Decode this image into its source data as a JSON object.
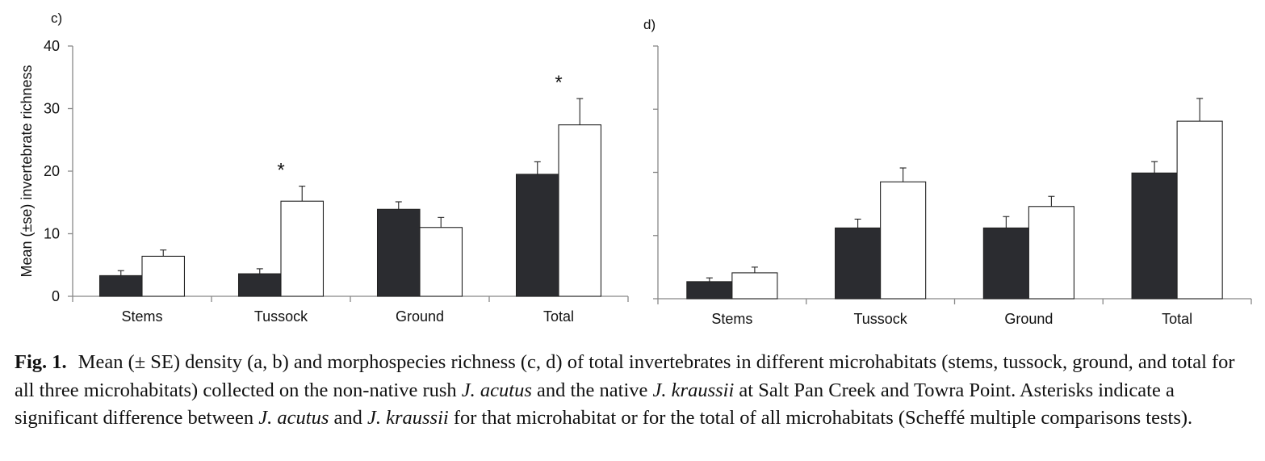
{
  "chart_data": [
    {
      "type": "bar",
      "panel_label": "c)",
      "ylabel": "Mean (±se) invertebrate richness",
      "ylim": [
        0,
        40
      ],
      "yticks": [
        "0",
        "10",
        "20",
        "30",
        "40"
      ],
      "categories": [
        "Stems",
        "Tussock",
        "Ground",
        "Total"
      ],
      "series": [
        {
          "fill": "#2b2c30",
          "values": [
            3.3,
            3.6,
            13.9,
            19.5
          ],
          "se": [
            0.8,
            0.8,
            1.2,
            2.0
          ]
        },
        {
          "fill": "#ffffff",
          "values": [
            6.4,
            15.2,
            11.0,
            27.4
          ],
          "se": [
            1.0,
            2.4,
            1.6,
            4.2
          ]
        }
      ],
      "significance": [
        "",
        "*",
        "",
        "*"
      ],
      "grid": false
    },
    {
      "type": "bar",
      "panel_label": "d)",
      "ylim": [
        0,
        40
      ],
      "categories": [
        "Stems",
        "Tussock",
        "Ground",
        "Total"
      ],
      "series": [
        {
          "fill": "#2b2c30",
          "values": [
            2.7,
            11.2,
            11.2,
            19.9
          ],
          "se": [
            0.6,
            1.4,
            1.8,
            1.8
          ]
        },
        {
          "fill": "#ffffff",
          "values": [
            4.1,
            18.5,
            14.6,
            28.1
          ],
          "se": [
            0.9,
            2.2,
            1.6,
            3.6
          ]
        }
      ],
      "significance": [
        "",
        "",
        "",
        ""
      ],
      "grid": false
    }
  ],
  "caption": {
    "label": "Fig. 1.",
    "text_1": "Mean (± SE) density (a, b) and morphospecies richness (c, d) of total invertebrates in different microhabitats (stems, tussock, ground, and total for all three microhabitats) collected on the non-native rush ",
    "species_1": "J. acutus",
    "text_2": " and the native ",
    "species_2": "J. kraussii",
    "text_3": " at Salt Pan Creek and Towra Point. Asterisks indicate a significant difference between ",
    "species_3": "J. acutus",
    "text_4": " and ",
    "species_4": "J. kraussii",
    "text_5": " for that microhabitat or for the total of all microhabitats (Scheffé multiple comparisons tests)."
  }
}
